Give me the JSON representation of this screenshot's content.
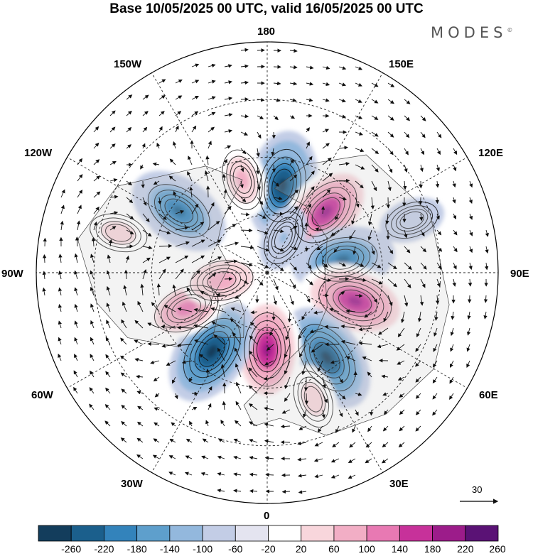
{
  "title": "Base 10/05/2025 00 UTC, valid 16/05/2025 00 UTC",
  "brand": "MODES",
  "brand_mark": "©",
  "longitude_labels": {
    "top": "180",
    "top_left": "150W",
    "top_right": "150E",
    "upper_left": "120W",
    "upper_right": "120E",
    "left": "90W",
    "right": "90E",
    "lower_left": "60W",
    "lower_right": "60E",
    "bottom_left": "30W",
    "bottom_right": "30E",
    "bottom": "0"
  },
  "reference_vector_label": "30",
  "colorbar": {
    "colors": [
      "#133d5c",
      "#1b5f8c",
      "#3383bb",
      "#5e9fcc",
      "#93b8dd",
      "#c3cde6",
      "#e4e4f0",
      "#ffffff",
      "#f8d6dc",
      "#f2aec5",
      "#e879b3",
      "#c7319a",
      "#9c1c8a",
      "#5a1275"
    ],
    "labels": [
      "-260",
      "-220",
      "-180",
      "-140",
      "-100",
      "-60",
      "-20",
      "20",
      "60",
      "100",
      "140",
      "180",
      "220",
      "260"
    ]
  },
  "anomaly_centers": [
    {
      "lon": 170,
      "colat": 23,
      "value": -240
    },
    {
      "lon": 136,
      "colat": 22,
      "value": 250
    },
    {
      "lon": 100,
      "colat": 20,
      "value": -200
    },
    {
      "lon": 72,
      "colat": 24,
      "value": 255
    },
    {
      "lon": 35,
      "colat": 27,
      "value": -255
    },
    {
      "lon": 0,
      "colat": 20,
      "value": 245
    },
    {
      "lon": -35,
      "colat": 25,
      "value": -250
    },
    {
      "lon": -66,
      "colat": 23,
      "value": 180
    },
    {
      "lon": -125,
      "colat": 28,
      "value": -200
    },
    {
      "lon": -165,
      "colat": 25,
      "value": 120
    },
    {
      "lon": 155,
      "colat": 10,
      "value": -60
    },
    {
      "lon": -80,
      "colat": 12,
      "value": 140
    },
    {
      "lon": 20,
      "colat": 35,
      "value": 90
    },
    {
      "lon": -105,
      "colat": 40,
      "value": 90
    },
    {
      "lon": 110,
      "colat": 40,
      "value": -50
    }
  ]
}
